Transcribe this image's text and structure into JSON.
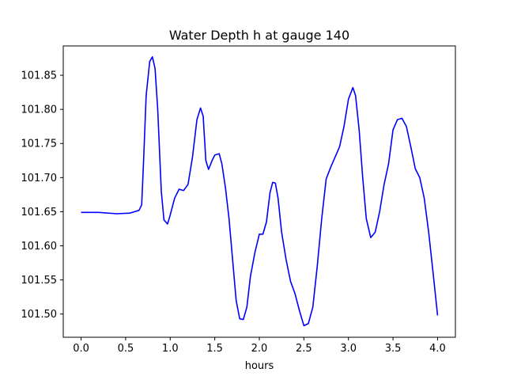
{
  "chart_data": {
    "type": "line",
    "title": "Water Depth h at gauge 140",
    "xlabel": "hours",
    "ylabel": "",
    "xlim": [
      -0.2,
      4.2
    ],
    "ylim": [
      101.466,
      101.893
    ],
    "xticks": [
      0.0,
      0.5,
      1.0,
      1.5,
      2.0,
      2.5,
      3.0,
      3.5,
      4.0
    ],
    "xtick_labels": [
      "0.0",
      "0.5",
      "1.0",
      "1.5",
      "2.0",
      "2.5",
      "3.0",
      "3.5",
      "4.0"
    ],
    "yticks": [
      101.5,
      101.55,
      101.6,
      101.65,
      101.7,
      101.75,
      101.8,
      101.85
    ],
    "ytick_labels": [
      "101.50",
      "101.55",
      "101.60",
      "101.65",
      "101.70",
      "101.75",
      "101.80",
      "101.85"
    ],
    "grid": false,
    "series": [
      {
        "color": "#0000ff",
        "x": [
          0.0,
          0.2,
          0.4,
          0.55,
          0.65,
          0.68,
          0.7,
          0.73,
          0.77,
          0.8,
          0.83,
          0.86,
          0.9,
          0.93,
          0.97,
          1.0,
          1.05,
          1.1,
          1.15,
          1.2,
          1.25,
          1.3,
          1.34,
          1.37,
          1.4,
          1.43,
          1.47,
          1.5,
          1.55,
          1.58,
          1.62,
          1.66,
          1.7,
          1.74,
          1.78,
          1.82,
          1.86,
          1.9,
          1.95,
          2.0,
          2.04,
          2.08,
          2.12,
          2.15,
          2.18,
          2.21,
          2.25,
          2.3,
          2.35,
          2.4,
          2.45,
          2.5,
          2.55,
          2.6,
          2.65,
          2.7,
          2.75,
          2.8,
          2.85,
          2.9,
          2.95,
          3.0,
          3.05,
          3.08,
          3.12,
          3.16,
          3.2,
          3.25,
          3.3,
          3.35,
          3.4,
          3.45,
          3.5,
          3.55,
          3.6,
          3.65,
          3.7,
          3.75,
          3.8,
          3.85,
          3.9,
          3.95,
          4.0
        ],
        "y": [
          101.649,
          101.649,
          101.647,
          101.648,
          101.652,
          101.66,
          101.72,
          101.82,
          101.87,
          101.877,
          101.86,
          101.8,
          101.68,
          101.638,
          101.632,
          101.645,
          101.67,
          101.683,
          101.681,
          101.69,
          101.73,
          101.785,
          101.802,
          101.79,
          101.725,
          101.712,
          101.725,
          101.733,
          101.735,
          101.72,
          101.685,
          101.64,
          101.58,
          101.52,
          101.493,
          101.492,
          101.51,
          101.555,
          101.59,
          101.617,
          101.617,
          101.635,
          101.678,
          101.693,
          101.692,
          101.67,
          101.62,
          101.58,
          101.548,
          101.53,
          101.505,
          101.483,
          101.486,
          101.51,
          101.57,
          101.64,
          101.698,
          101.715,
          101.73,
          101.745,
          101.775,
          101.815,
          101.832,
          101.82,
          101.77,
          101.7,
          101.64,
          101.612,
          101.62,
          101.65,
          101.69,
          101.72,
          101.77,
          101.785,
          101.787,
          101.775,
          101.745,
          101.713,
          101.7,
          101.67,
          101.62,
          101.56,
          101.498
        ]
      }
    ]
  }
}
